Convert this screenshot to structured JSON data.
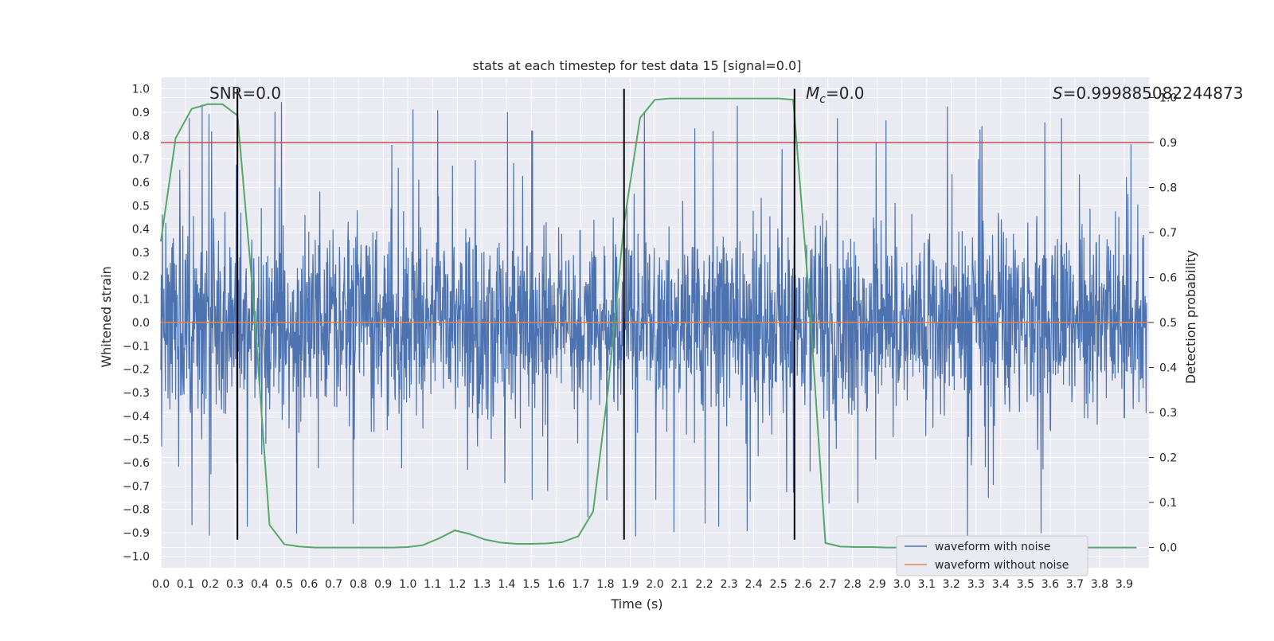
{
  "chart_data": {
    "type": "line",
    "title": "stats at each timestep for test data 15 [signal=0.0]",
    "xlabel": "Time (s)",
    "ylabel_left": "Whitened strain",
    "ylabel_right": "Detection probability",
    "xlim": [
      0.0,
      4.0
    ],
    "ylim_left": [
      -1.05,
      1.05
    ],
    "ylim_right": [
      -0.045,
      1.045
    ],
    "x_tick_labels": [
      "0.0",
      "0.1",
      "0.2",
      "0.3",
      "0.4",
      "0.5",
      "0.6",
      "0.7",
      "0.8",
      "0.9",
      "1.0",
      "1.1",
      "1.2",
      "1.3",
      "1.4",
      "1.5",
      "1.6",
      "1.7",
      "1.8",
      "1.9",
      "2.0",
      "2.1",
      "2.2",
      "2.3",
      "2.4",
      "2.5",
      "2.6",
      "2.7",
      "2.8",
      "2.9",
      "3.0",
      "3.1",
      "3.2",
      "3.3",
      "3.4",
      "3.5",
      "3.6",
      "3.7",
      "3.8",
      "3.9"
    ],
    "left_tick_labels": [
      "1.0",
      "0.9",
      "0.8",
      "0.7",
      "0.6",
      "0.5",
      "0.4",
      "0.3",
      "0.2",
      "0.1",
      "0.0",
      "−0.1",
      "−0.2",
      "−0.3",
      "−0.4",
      "−0.5",
      "−0.6",
      "−0.7",
      "−0.8",
      "−0.9",
      "−1.0"
    ],
    "right_tick_labels": [
      "1.0",
      "0.9",
      "0.8",
      "0.7",
      "0.6",
      "0.5",
      "0.4",
      "0.3",
      "0.2",
      "0.1",
      "0.0"
    ],
    "annotations": {
      "snr": "SNR=0.0",
      "mc_symbol": "M",
      "mc_sub": "c",
      "mc_value": "=0.0",
      "s_symbol": "S",
      "s_value": "=0.999885082244873"
    },
    "threshold_right": 0.9,
    "vertical_lines_x": [
      0.31,
      1.875,
      2.565
    ],
    "vertical_lines_range_left": [
      -0.93,
      1.0
    ],
    "series": [
      {
        "name": "waveform with noise",
        "color": "#4c72b0",
        "axis": "left",
        "amplitude_typical": 0.35,
        "amplitude_peak": 1.0
      },
      {
        "name": "waveform without noise",
        "color": "#dd8452",
        "axis": "left",
        "values": "constant 0.0"
      },
      {
        "name": "detection probability",
        "color": "#55a868",
        "axis": "right",
        "x": [
          0.0,
          0.06,
          0.125,
          0.19,
          0.25,
          0.31,
          0.375,
          0.44,
          0.5,
          0.56,
          0.625,
          0.69,
          0.75,
          0.81,
          0.875,
          0.94,
          1.0,
          1.06,
          1.125,
          1.19,
          1.25,
          1.31,
          1.375,
          1.44,
          1.5,
          1.56,
          1.625,
          1.69,
          1.75,
          1.81,
          1.875,
          1.94,
          2.0,
          2.06,
          2.125,
          2.19,
          2.25,
          2.31,
          2.375,
          2.44,
          2.5,
          2.56,
          2.625,
          2.69,
          2.75,
          2.81,
          2.875,
          2.94,
          3.0,
          3.5,
          3.95
        ],
        "values": [
          0.68,
          0.91,
          0.975,
          0.985,
          0.985,
          0.96,
          0.55,
          0.05,
          0.007,
          0.002,
          0.0,
          0.0,
          0.0,
          0.0,
          0.0,
          0.0,
          0.001,
          0.005,
          0.02,
          0.038,
          0.03,
          0.018,
          0.011,
          0.008,
          0.008,
          0.009,
          0.012,
          0.025,
          0.08,
          0.35,
          0.72,
          0.955,
          0.995,
          0.998,
          0.998,
          0.998,
          0.998,
          0.998,
          0.998,
          0.998,
          0.998,
          0.995,
          0.55,
          0.01,
          0.002,
          0.001,
          0.001,
          0.0,
          0.0,
          0.0,
          0.0
        ]
      }
    ],
    "legend": {
      "position": "lower-right",
      "entries": [
        {
          "label": "waveform with noise",
          "color": "#4c72b0"
        },
        {
          "label": "waveform without noise",
          "color": "#dd8452"
        }
      ]
    },
    "colors": {
      "axes_bg": "#eaeaf2",
      "grid": "#ffffff",
      "threshold": "#c44e52",
      "vline": "#000000"
    }
  }
}
